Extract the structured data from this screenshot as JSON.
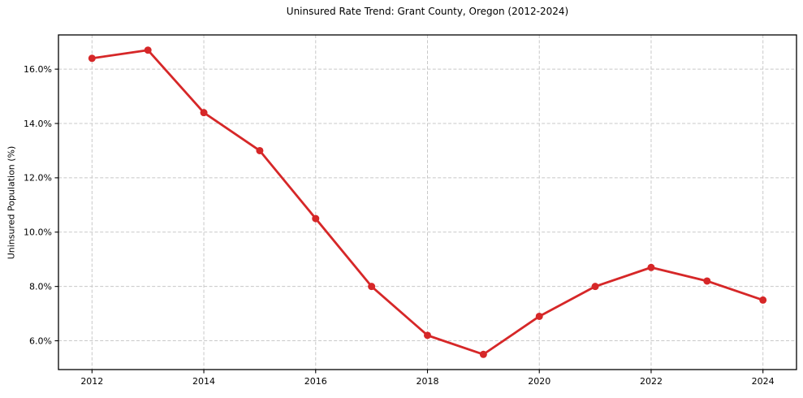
{
  "chart_data": {
    "type": "line",
    "title": "Uninsured Rate Trend: Grant County, Oregon (2012-2024)",
    "xlabel": "",
    "ylabel": "Uninsured Population (%)",
    "x": [
      2012,
      2013,
      2014,
      2015,
      2016,
      2017,
      2018,
      2019,
      2020,
      2021,
      2022,
      2023,
      2024
    ],
    "values": [
      16.4,
      16.7,
      14.4,
      13.0,
      10.5,
      8.0,
      6.2,
      5.5,
      6.9,
      8.0,
      8.7,
      8.2,
      7.5
    ],
    "xticks": [
      2012,
      2014,
      2016,
      2018,
      2020,
      2022,
      2024
    ],
    "yticks": [
      6.0,
      8.0,
      10.0,
      12.0,
      14.0,
      16.0
    ],
    "xlim": [
      2011.4,
      2024.6
    ],
    "ylim": [
      4.94,
      17.26
    ],
    "grid": true,
    "grid_style": "dashed",
    "legend": false,
    "marker": "circle",
    "colors": {
      "line": "#d62728",
      "grid": "#c8c8c8",
      "spine": "#000000",
      "text": "#000000",
      "background": "#ffffff"
    }
  }
}
